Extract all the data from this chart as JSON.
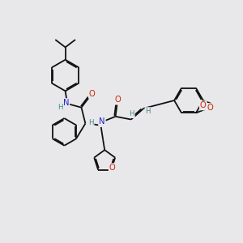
{
  "bg_color": "#e8e8ea",
  "bond_color": "#111111",
  "N_color": "#2222cc",
  "O_color": "#cc2200",
  "H_color": "#448888",
  "bond_lw": 1.3,
  "dbl_sep": 0.055,
  "font_size": 7.2,
  "figsize": [
    3.0,
    3.0
  ],
  "dpi": 100,
  "xlim": [
    -1.0,
    11.0
  ],
  "ylim": [
    -1.5,
    10.5
  ]
}
